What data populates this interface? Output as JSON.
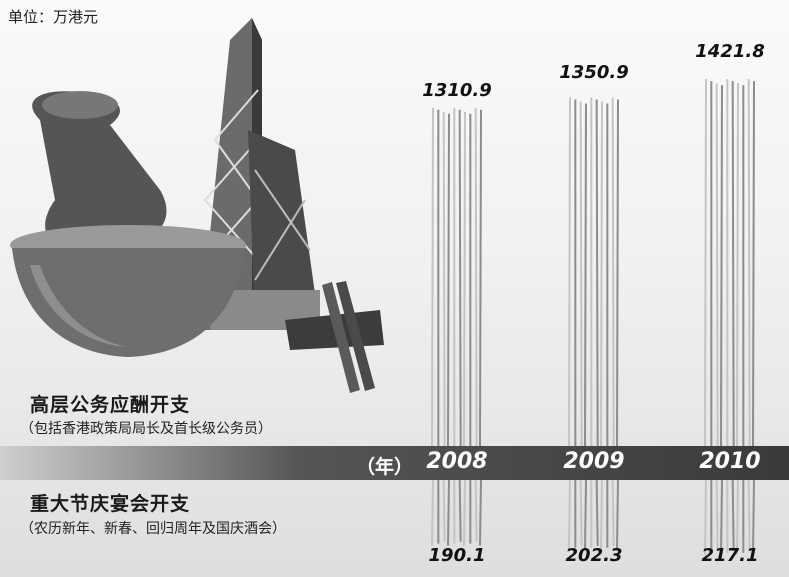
{
  "header": {
    "unit_label": "单位：万港元"
  },
  "categories": {
    "senior": {
      "label": "高层公务应酬开支",
      "sub": "（包括香港政策局局长及首长级公务员）"
    },
    "events": {
      "label": "重大节庆宴会开支",
      "sub": "（农历新年、新春、回归周年及国庆酒会）"
    }
  },
  "axis": {
    "year_label": "（年）"
  },
  "chart_data": {
    "type": "bar",
    "categories": [
      "2008",
      "2009",
      "2010"
    ],
    "series": [
      {
        "name": "高层公务应酬开支",
        "values": [
          1310.9,
          1350.9,
          1421.8
        ]
      },
      {
        "name": "重大节庆宴会开支",
        "values": [
          190.1,
          202.3,
          217.1
        ]
      }
    ],
    "value_labels_top": [
      "1310.9",
      "1350.9",
      "1421.8"
    ],
    "value_labels_bottom": [
      "190.1",
      "202.3",
      "217.1"
    ]
  }
}
